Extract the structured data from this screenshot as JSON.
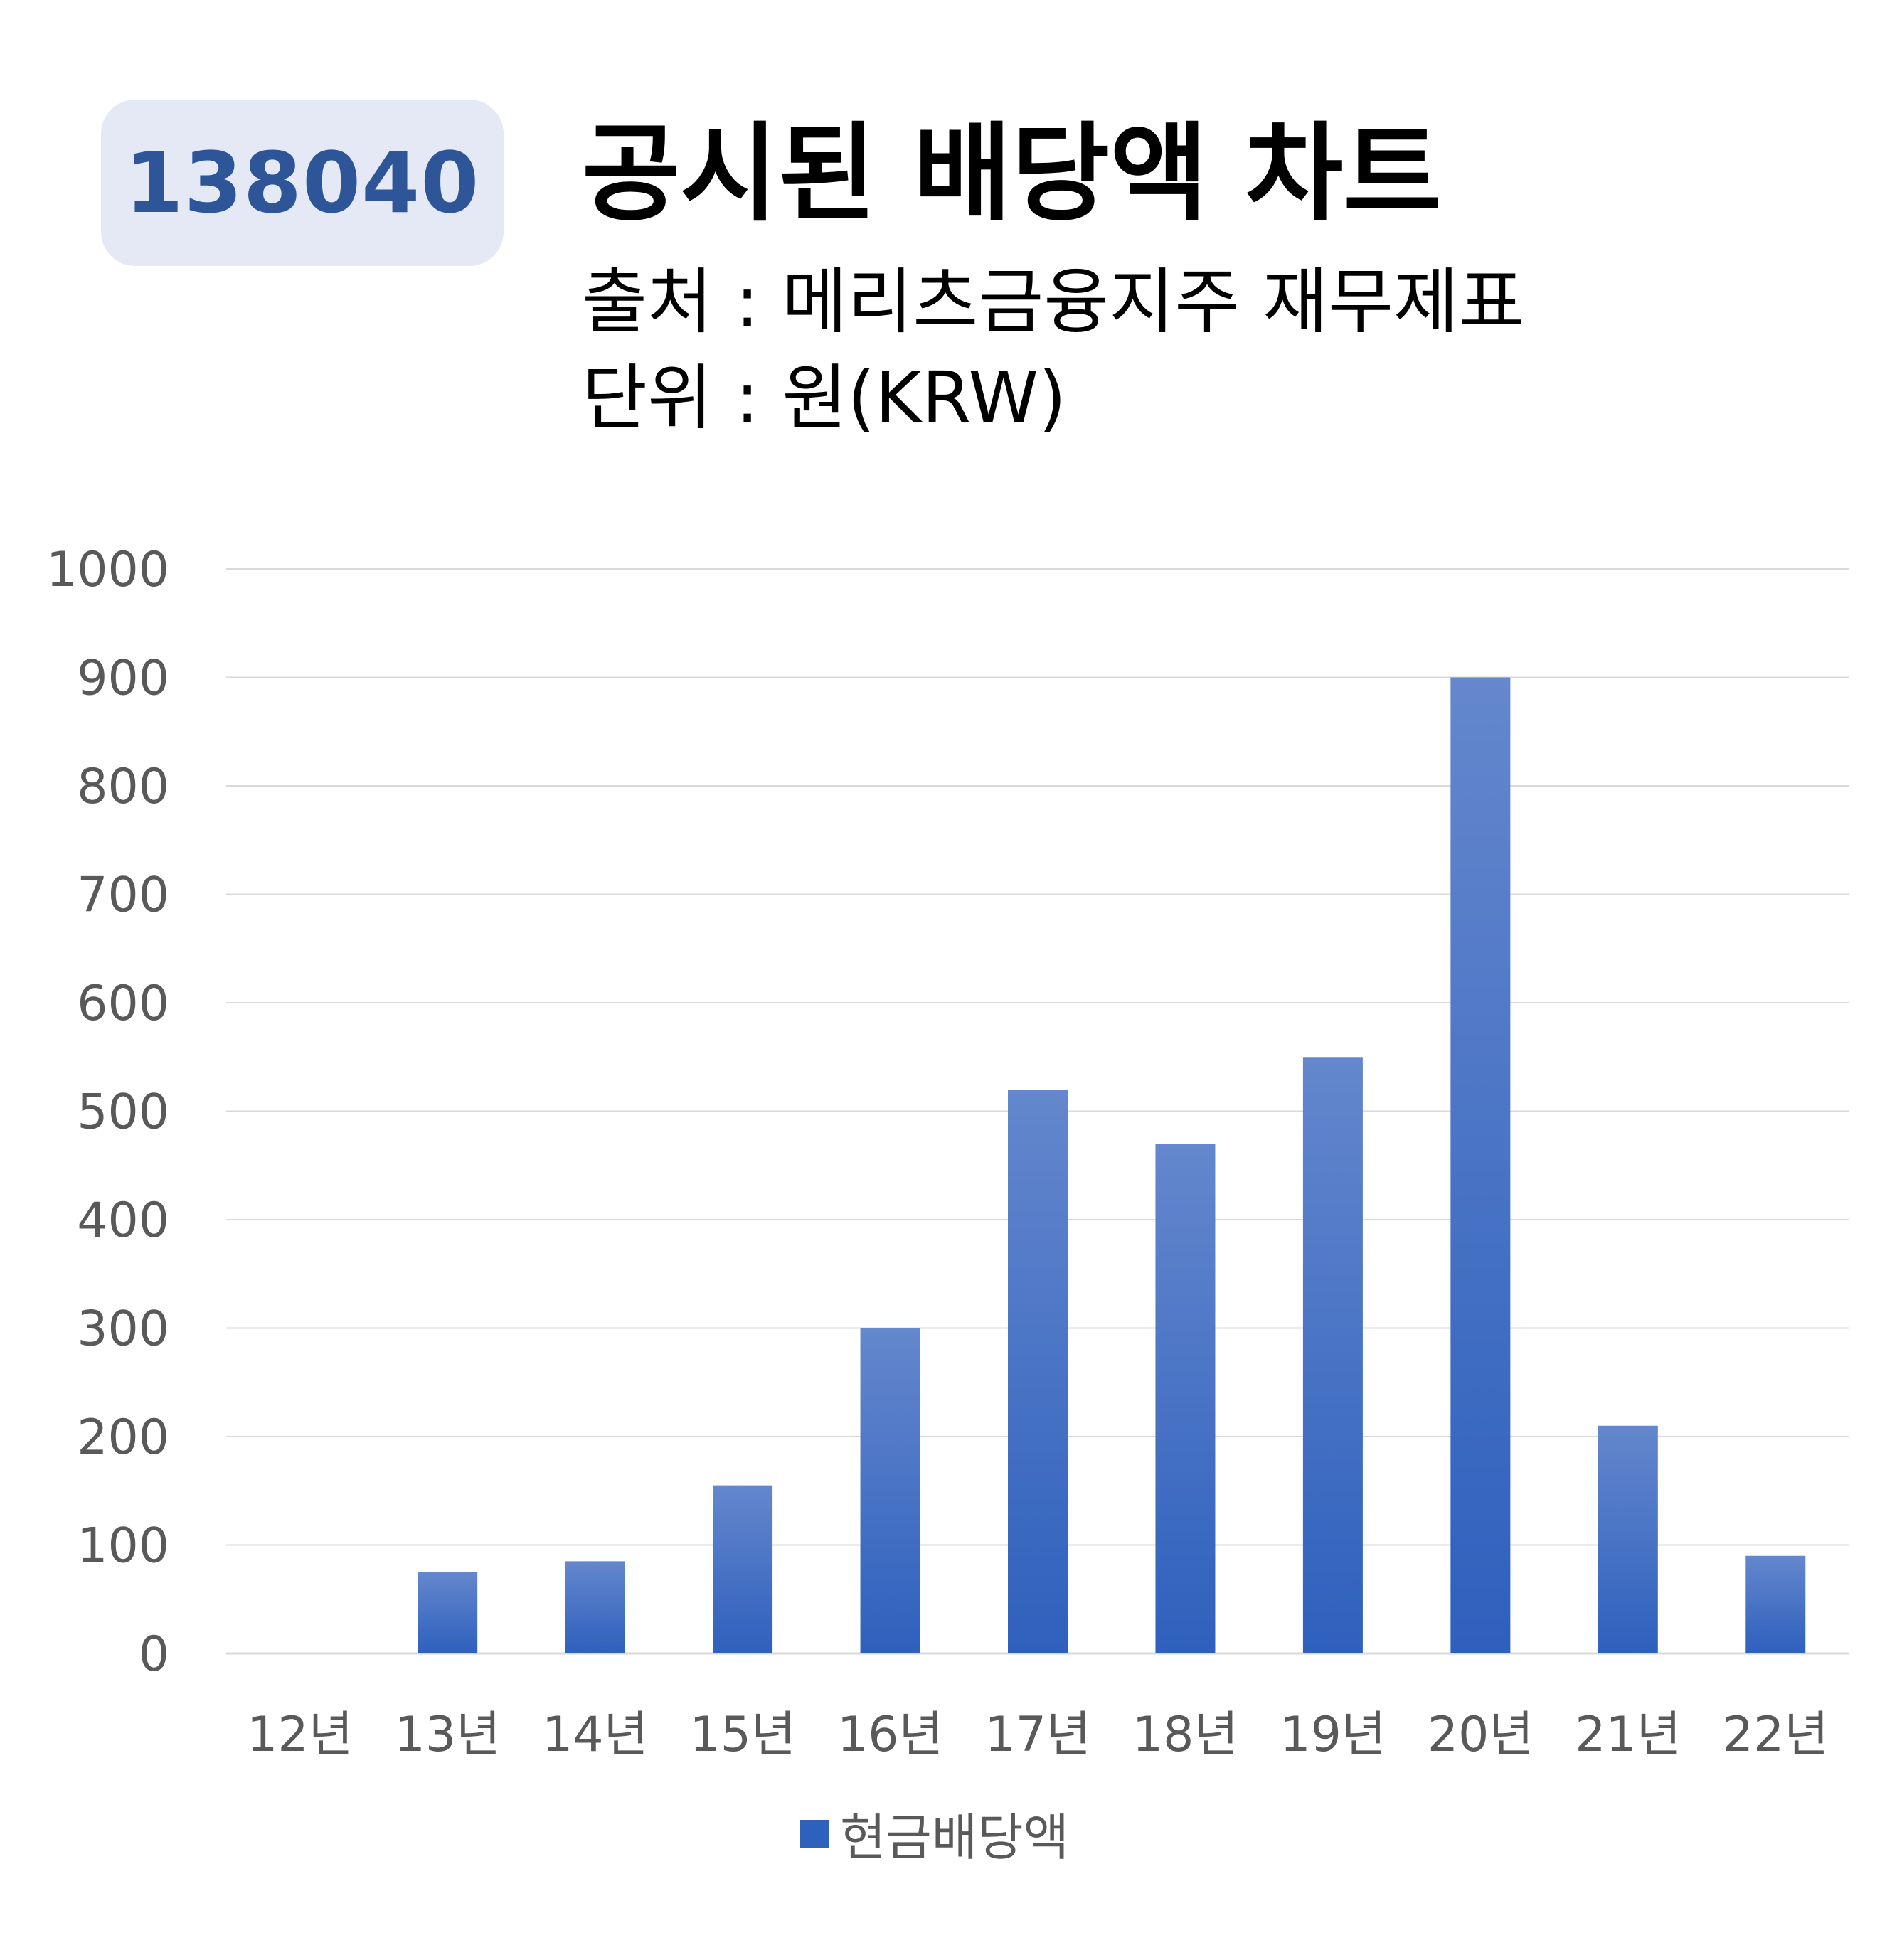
{
  "header": {
    "ticker": "138040",
    "title": "공시된 배당액 차트",
    "source": "출처 : 메리츠금융지주 재무제표",
    "unit": "단위 : 원(KRW)"
  },
  "colors": {
    "bar_top": "#6487cd",
    "bar_bottom": "#2e60bd",
    "badge_bg": "#e4e9f5",
    "badge_text": "#2e5597",
    "grid": "#d9d9d9",
    "axis_text": "#595959"
  },
  "chart_data": {
    "type": "bar",
    "title": "공시된 배당액 차트",
    "xlabel": "",
    "ylabel": "",
    "categories": [
      "12년",
      "13년",
      "14년",
      "15년",
      "16년",
      "17년",
      "18년",
      "19년",
      "20년",
      "21년",
      "22년"
    ],
    "series": [
      {
        "name": "현금배당액",
        "values": [
          0,
          75,
          85,
          155,
          300,
          520,
          470,
          550,
          900,
          210,
          90
        ]
      }
    ],
    "ylim": [
      0,
      1000
    ],
    "yticks": [
      0,
      100,
      200,
      300,
      400,
      500,
      600,
      700,
      800,
      900,
      1000
    ],
    "grid": true,
    "legend_position": "bottom"
  }
}
